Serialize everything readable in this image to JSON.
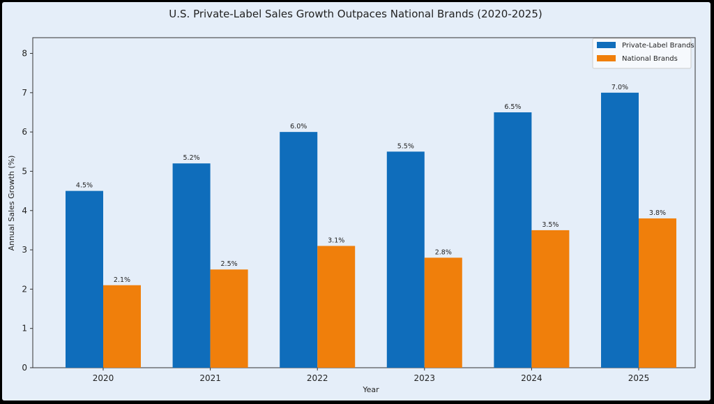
{
  "chart_data": {
    "type": "bar",
    "title": "U.S. Private-Label Sales Growth Outpaces National Brands (2020-2025)",
    "xlabel": "Year",
    "ylabel": "Annual Sales Growth (%)",
    "categories": [
      "2020",
      "2021",
      "2022",
      "2023",
      "2024",
      "2025"
    ],
    "series": [
      {
        "name": "Private-Label Brands",
        "color": "#0f6dbb",
        "values": [
          4.5,
          5.2,
          6.0,
          5.5,
          6.5,
          7.0
        ],
        "labels": [
          "4.5%",
          "5.2%",
          "6.0%",
          "5.5%",
          "6.5%",
          "7.0%"
        ]
      },
      {
        "name": "National Brands",
        "color": "#f07f0b",
        "values": [
          2.1,
          2.5,
          3.1,
          2.8,
          3.5,
          3.8
        ],
        "labels": [
          "2.1%",
          "2.5%",
          "3.1%",
          "2.8%",
          "3.5%",
          "3.8%"
        ]
      }
    ],
    "ylim": [
      0,
      8.4
    ],
    "yticks": [
      0,
      1,
      2,
      3,
      4,
      5,
      6,
      7,
      8
    ],
    "grid": false,
    "legend": "top-right"
  }
}
